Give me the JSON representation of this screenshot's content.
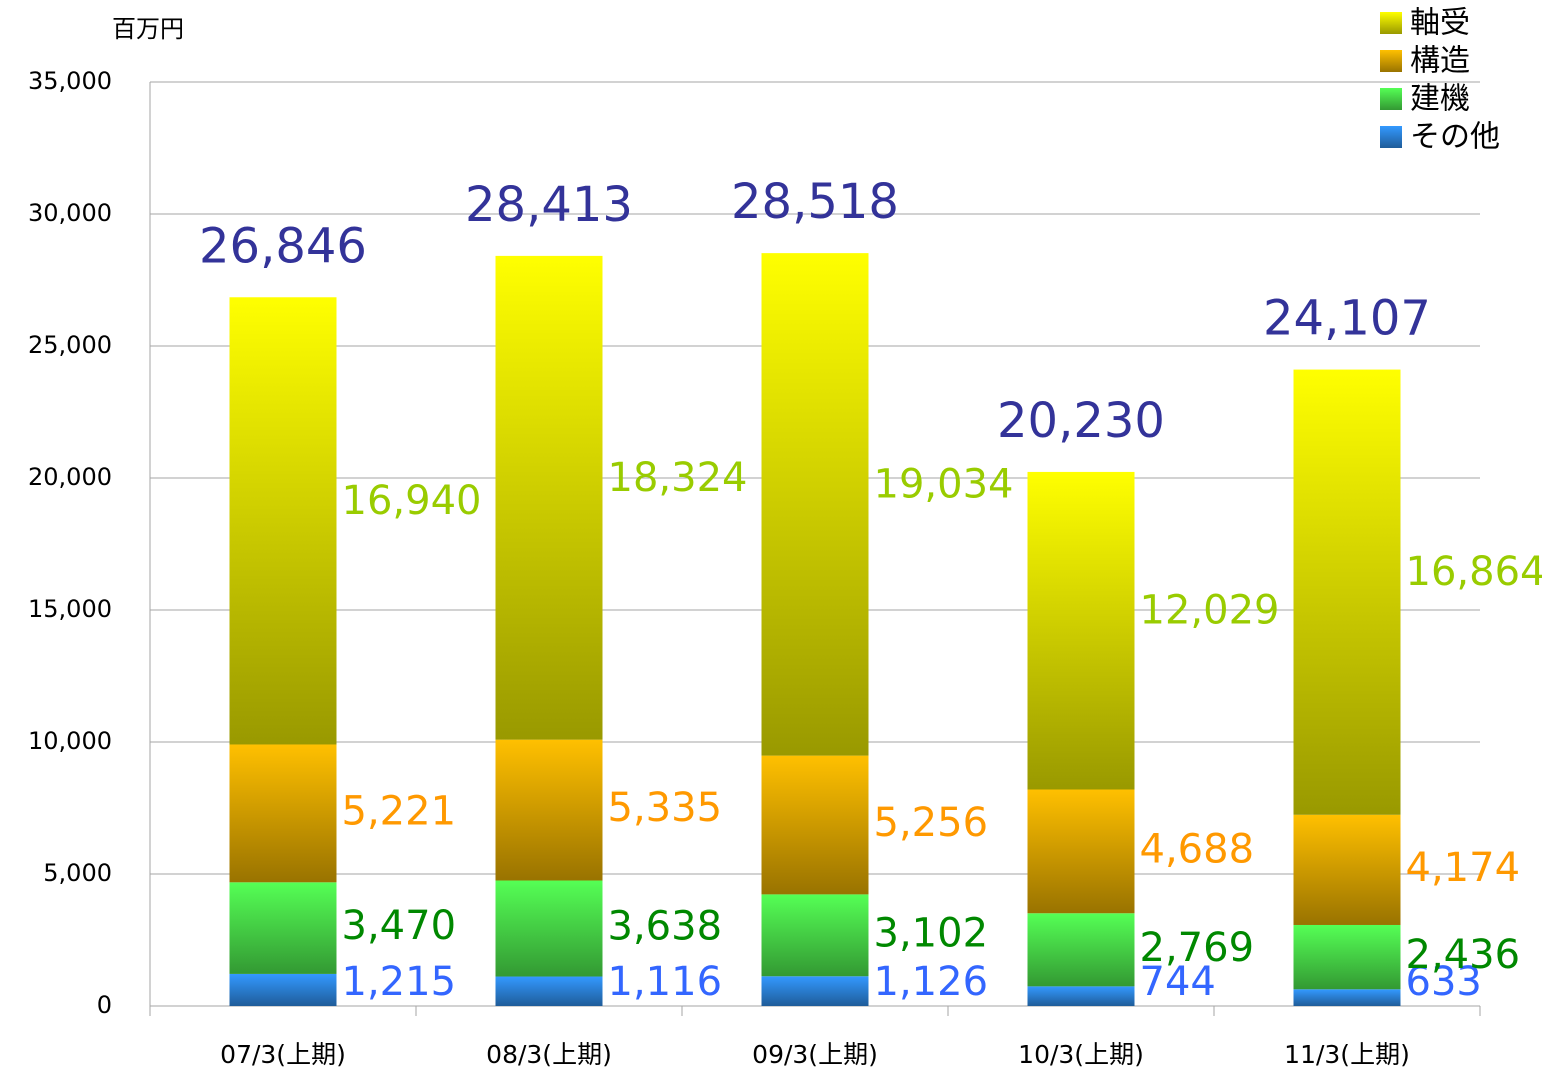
{
  "chart_data": {
    "type": "stacked_bar",
    "y_label": "百万円",
    "categories": [
      "07/3(上期)",
      "08/3(上期)",
      "09/3(上期)",
      "10/3(上期)",
      "11/3(上期)"
    ],
    "series": [
      {
        "name": "その他",
        "color": "#3399ff",
        "label_color": "#3366ff",
        "values": [
          1215,
          1116,
          1126,
          744,
          633
        ],
        "value_labels": [
          "1,215",
          "1,116",
          "1,126",
          "744",
          "633"
        ]
      },
      {
        "name": "建機",
        "color": "#55ff55",
        "label_color": "#008800",
        "values": [
          3470,
          3638,
          3102,
          2769,
          2436
        ],
        "value_labels": [
          "3,470",
          "3,638",
          "3,102",
          "2,769",
          "2,436"
        ]
      },
      {
        "name": "構造",
        "color": "#ffc000",
        "label_color": "#ff9900",
        "values": [
          5221,
          5335,
          5256,
          4688,
          4174
        ],
        "value_labels": [
          "5,221",
          "5,335",
          "5,256",
          "4,688",
          "4,174"
        ]
      },
      {
        "name": "軸受",
        "color": "#ffff00",
        "label_color": "#99cc00",
        "values": [
          16940,
          18324,
          19034,
          12029,
          16864
        ],
        "value_labels": [
          "16,940",
          "18,324",
          "19,034",
          "12,029",
          "16,864"
        ]
      }
    ],
    "totals": {
      "values": [
        26846,
        28413,
        28518,
        20230,
        24107
      ],
      "value_labels": [
        "26,846",
        "28,413",
        "28,518",
        "20,230",
        "24,107"
      ]
    },
    "ylim": [
      0,
      35000
    ],
    "yticks": [
      0,
      {
        "value": 5000,
        "label": "5,000"
      },
      {
        "value": 10000,
        "label": "10,000"
      },
      {
        "value": 15000,
        "label": "15,000"
      },
      {
        "value": 20000,
        "label": "20,000"
      },
      {
        "value": 25000,
        "label": "25,000"
      },
      {
        "value": 30000,
        "label": "30,000"
      },
      {
        "value": 35000,
        "label": "35,000"
      }
    ],
    "grid": true,
    "legend": "upper right"
  }
}
